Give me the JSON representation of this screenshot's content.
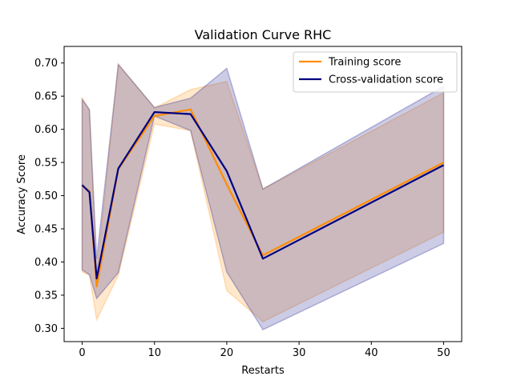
{
  "chart_data": {
    "type": "line",
    "title": "Validation Curve RHC",
    "xlabel": "Restarts",
    "ylabel": "Accuracy Score",
    "xlim": [
      -2.5,
      52.5
    ],
    "ylim": [
      0.28,
      0.725
    ],
    "xticks": [
      0,
      10,
      20,
      30,
      40,
      50
    ],
    "yticks": [
      0.3,
      0.35,
      0.4,
      0.45,
      0.5,
      0.55,
      0.6,
      0.65,
      0.7
    ],
    "x": [
      0,
      1,
      2,
      5,
      10,
      15,
      20,
      25,
      50
    ],
    "grid": false,
    "legend_position": "top-right",
    "series": [
      {
        "name": "Training score",
        "color": "#ff8c00",
        "values": [
          0.515,
          0.507,
          0.363,
          0.54,
          0.62,
          0.63,
          0.517,
          0.41,
          0.55
        ],
        "band_upper": [
          0.648,
          0.628,
          0.382,
          0.698,
          0.632,
          0.66,
          0.672,
          0.51,
          0.655
        ],
        "band_lower": [
          0.385,
          0.38,
          0.313,
          0.38,
          0.608,
          0.598,
          0.357,
          0.31,
          0.445
        ]
      },
      {
        "name": "Cross-validation score",
        "color": "#000080",
        "values": [
          0.516,
          0.505,
          0.375,
          0.541,
          0.626,
          0.623,
          0.537,
          0.405,
          0.546
        ],
        "band_upper": [
          0.645,
          0.63,
          0.405,
          0.698,
          0.633,
          0.647,
          0.692,
          0.51,
          0.665
        ],
        "band_lower": [
          0.388,
          0.381,
          0.345,
          0.384,
          0.62,
          0.598,
          0.385,
          0.298,
          0.428
        ]
      }
    ]
  }
}
